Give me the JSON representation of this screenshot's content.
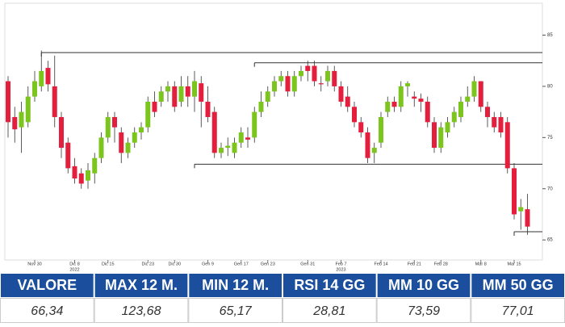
{
  "chart_data": {
    "type": "candlestick",
    "categories": [
      null,
      null,
      null,
      null,
      "Nov 30",
      null,
      null,
      null,
      null,
      null,
      "Dic 8",
      null,
      null,
      null,
      null,
      "Dic 15",
      null,
      null,
      null,
      null,
      null,
      "Dic 23",
      null,
      null,
      null,
      "Dic 30",
      null,
      null,
      null,
      null,
      "Gen 9",
      null,
      null,
      null,
      null,
      "Gen 17",
      null,
      null,
      null,
      "Gen 23",
      null,
      null,
      null,
      null,
      null,
      "Gen 31",
      null,
      null,
      null,
      null,
      "Feb 7",
      null,
      null,
      null,
      null,
      null,
      "Feb 14",
      null,
      null,
      null,
      null,
      "Feb 21",
      null,
      null,
      null,
      "Feb 28",
      null,
      null,
      null,
      null,
      null,
      "Mar 8",
      null,
      null,
      null,
      null,
      "Mar 15",
      null,
      null
    ],
    "years": [
      null,
      null,
      null,
      null,
      null,
      null,
      null,
      null,
      null,
      null,
      "2022",
      null,
      null,
      null,
      null,
      null,
      null,
      null,
      null,
      null,
      null,
      null,
      null,
      null,
      null,
      null,
      null,
      null,
      null,
      null,
      null,
      null,
      null,
      null,
      null,
      null,
      null,
      null,
      null,
      null,
      null,
      null,
      null,
      null,
      null,
      null,
      null,
      null,
      null,
      null,
      "2023",
      null,
      null,
      null,
      null,
      null,
      null,
      null,
      null,
      null,
      null,
      null,
      null,
      null,
      null,
      null,
      null,
      null,
      null,
      null,
      null,
      null,
      null,
      null,
      null,
      null,
      null,
      null,
      null
    ],
    "open": [
      80.5,
      77,
      76,
      76.5,
      79,
      80,
      81.8,
      80,
      77,
      74.5,
      72.2,
      71.5,
      70.8,
      71.5,
      73,
      75,
      77,
      75.5,
      73.5,
      74.5,
      75.5,
      76,
      78.5,
      78.5,
      79.5,
      80,
      78.5,
      80,
      79,
      80.3,
      78.5,
      77.5,
      73.5,
      74,
      73.5,
      74.5,
      75,
      75,
      77.5,
      78.5,
      79.5,
      80.5,
      81,
      79.5,
      81,
      82,
      82,
      80.3,
      80.5,
      81.5,
      80,
      79,
      78,
      76.5,
      75.5,
      73.5,
      74.5,
      77.5,
      78.5,
      78,
      80,
      79,
      78.8,
      78.5,
      76.5,
      74,
      75.5,
      76.5,
      77,
      78.5,
      79,
      80.5,
      78,
      77,
      77,
      76.5,
      72,
      67.8,
      68
    ],
    "high": [
      81,
      78,
      78.5,
      80,
      81.5,
      83.5,
      82.5,
      83,
      77.5,
      75,
      73,
      72,
      72.5,
      73.5,
      75.5,
      77.5,
      77.5,
      76,
      75,
      76,
      76.5,
      79,
      79.5,
      80,
      80.5,
      80.5,
      81,
      81,
      81.5,
      81,
      80,
      78,
      74.5,
      75,
      75,
      76,
      76,
      78,
      79.5,
      80,
      81,
      81.5,
      81.5,
      81.5,
      82,
      82.5,
      82.5,
      81,
      82,
      82,
      80.5,
      80,
      78.5,
      77,
      76,
      74.5,
      77.5,
      79,
      79,
      80.5,
      80.5,
      79.5,
      79.3,
      79,
      77,
      76.5,
      77,
      78,
      79,
      80,
      81,
      80.5,
      78.5,
      77.5,
      77.5,
      77,
      72.5,
      69,
      69.5
    ],
    "low": [
      75,
      74.5,
      73.5,
      76,
      78.5,
      79.5,
      79.5,
      76,
      73,
      71.5,
      70.5,
      70,
      70,
      70.5,
      72.5,
      74.5,
      74.5,
      72.5,
      73,
      74,
      74.8,
      75.5,
      77,
      78,
      78.5,
      77.5,
      78,
      78,
      77.5,
      76,
      76.5,
      73,
      73,
      73.2,
      73,
      74,
      74,
      74.5,
      77,
      78,
      79,
      80,
      79,
      79,
      80.5,
      80.5,
      80,
      79.5,
      80,
      79.5,
      78,
      77.5,
      76,
      75,
      72.5,
      72.5,
      74,
      77,
      77.5,
      77.5,
      79,
      78,
      77.5,
      76,
      73.5,
      73.5,
      75,
      76,
      76.5,
      78,
      78.5,
      77.5,
      76,
      75.5,
      75,
      71.5,
      67,
      66,
      65.5
    ],
    "close": [
      76.5,
      75.8,
      77.5,
      79,
      80.5,
      81.5,
      80.2,
      77,
      74,
      72,
      71,
      70.5,
      71.8,
      73,
      75,
      77,
      76,
      73.5,
      74.5,
      75.5,
      76,
      78.5,
      77.5,
      79.5,
      80,
      78,
      80,
      79,
      80.5,
      78.5,
      77,
      73.5,
      74,
      74.2,
      74.5,
      75.5,
      74.8,
      77.5,
      78.5,
      79.5,
      80.5,
      81,
      79.5,
      81,
      81.5,
      81.5,
      80.5,
      80.2,
      81.5,
      80,
      78.5,
      78,
      76.5,
      75.5,
      73,
      74,
      77,
      78.5,
      78,
      80,
      80.3,
      78.8,
      78.5,
      76.5,
      74,
      76,
      76.5,
      77.5,
      78.5,
      79,
      80.5,
      78,
      77,
      76,
      75.5,
      72,
      67.5,
      68.2,
      66.3
    ],
    "up_color": "#7cc41e",
    "down_color": "#e41f3d",
    "levels": [
      {
        "value": 83.3,
        "start": 5
      },
      {
        "value": 82.3,
        "start": 37
      },
      {
        "value": 72.4,
        "start": 28
      },
      {
        "value": 65.8,
        "start": 76
      }
    ],
    "ylim": [
      63.2,
      87.8
    ],
    "yticks": [
      65,
      70,
      75,
      80,
      85
    ]
  },
  "table": {
    "headers": [
      "VALORE",
      "MAX 12 M.",
      "MIN 12 M.",
      "RSI 14 GG",
      "MM 10 GG",
      "MM 50 GG"
    ],
    "rows": [
      [
        "66,34",
        "123,68",
        "65,17",
        "28,81",
        "73,59",
        "77,01"
      ]
    ]
  }
}
